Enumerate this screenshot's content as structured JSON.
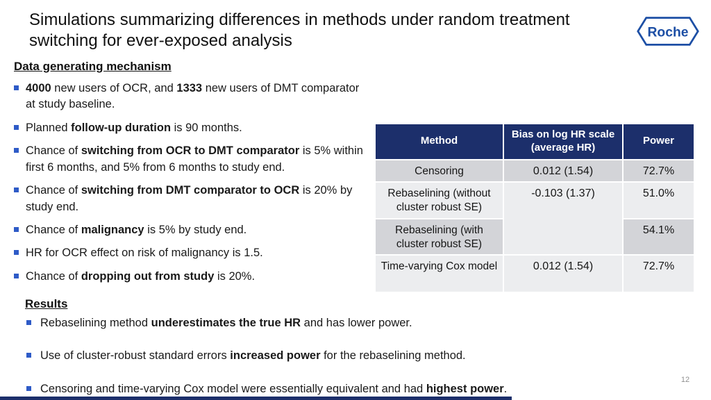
{
  "slide": {
    "page_number": "12"
  },
  "logo": {
    "text": "Roche",
    "color": "#1D4FA5"
  },
  "title": {
    "text": "Simulations summarizing differences in methods under random treatment switching for ever-exposed analysis"
  },
  "data_generating": {
    "heading": "Data generating mechanism",
    "bullets": [
      {
        "segments": [
          {
            "text": "4000",
            "bold": true
          },
          {
            "text": " new users of OCR, and ",
            "bold": false
          },
          {
            "text": "1333",
            "bold": true
          },
          {
            "text": " new users of DMT comparator at study baseline.",
            "bold": false
          }
        ]
      },
      {
        "segments": [
          {
            "text": "Planned ",
            "bold": false
          },
          {
            "text": "follow-up duration",
            "bold": true
          },
          {
            "text": " is 90 months.",
            "bold": false
          }
        ]
      },
      {
        "segments": [
          {
            "text": "Chance of ",
            "bold": false
          },
          {
            "text": "switching from OCR to DMT comparator",
            "bold": true
          },
          {
            "text": " is 5% within first 6 months, and 5% from 6 months to study end.",
            "bold": false
          }
        ]
      },
      {
        "segments": [
          {
            "text": "Chance of ",
            "bold": false
          },
          {
            "text": "switching from DMT comparator to OCR",
            "bold": true
          },
          {
            "text": " is 20% by study end.",
            "bold": false
          }
        ]
      },
      {
        "segments": [
          {
            "text": "Chance of ",
            "bold": false
          },
          {
            "text": "malignancy",
            "bold": true
          },
          {
            "text": " is 5% by study end.",
            "bold": false
          }
        ]
      },
      {
        "segments": [
          {
            "text": "HR for OCR effect on risk of malignancy is 1.5.",
            "bold": false
          }
        ]
      },
      {
        "segments": [
          {
            "text": "Chance of ",
            "bold": false
          },
          {
            "text": "dropping out from study",
            "bold": true
          },
          {
            "text": " is 20%.",
            "bold": false
          }
        ]
      }
    ]
  },
  "results": {
    "heading": "Results",
    "bullets": [
      {
        "segments": [
          {
            "text": "Rebaselining method ",
            "bold": false
          },
          {
            "text": "underestimates the true HR",
            "bold": true
          },
          {
            "text": " and has lower power.",
            "bold": false
          }
        ]
      },
      {
        "segments": [
          {
            "text": "Use of cluster-robust standard errors ",
            "bold": false
          },
          {
            "text": "increased power",
            "bold": true
          },
          {
            "text": " for the rebaselining method.",
            "bold": false
          }
        ]
      },
      {
        "segments": [
          {
            "text": "Censoring and time-varying Cox model were essentially equivalent and had ",
            "bold": false
          },
          {
            "text": "highest power",
            "bold": true
          },
          {
            "text": ".",
            "bold": false
          }
        ]
      }
    ]
  },
  "table": {
    "headers": [
      "Method",
      "Bias on log HR scale (average HR)",
      "Power"
    ],
    "rows": [
      {
        "method": "Censoring",
        "bias": "0.012 (1.54)",
        "bias_rowspan": 1,
        "power": "72.7%",
        "shade": "dark"
      },
      {
        "method": "Rebaselining (without cluster robust SE)",
        "bias": "-0.103 (1.37)",
        "bias_rowspan": 2,
        "power": "51.0%",
        "shade": "light"
      },
      {
        "method": "Rebaselining  (with cluster robust SE)",
        "bias": null,
        "power": "54.1%",
        "shade": "dark"
      },
      {
        "method": "Time-varying Cox model",
        "bias": "0.012 (1.54)",
        "bias_rowspan": 1,
        "power": "72.7%",
        "shade": "light"
      }
    ]
  },
  "colors": {
    "header_navy": "#1C2F6B",
    "row_dark": "#D3D4D8",
    "row_light": "#ECEDEF",
    "bullet_blue": "#2E5BC7",
    "roche_blue": "#1D4FA5"
  }
}
